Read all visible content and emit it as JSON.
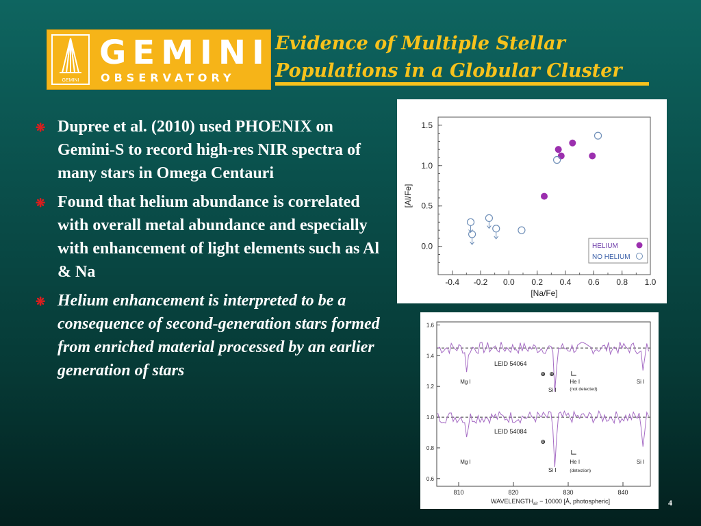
{
  "logo": {
    "main": "GEMINI",
    "sub": "OBSERVATORY",
    "mark": "GEMINI"
  },
  "title": {
    "line1": "Evidence of Multiple Stellar",
    "line2": "Populations in a Globular Cluster"
  },
  "bullets": [
    {
      "text": "Dupree et al. (2010) used PHOENIX on Gemini-S to record high-res NIR spectra of many stars in Omega Centauri",
      "italic": false
    },
    {
      "text": "Found that helium abundance is correlated with overall metal abundance and especially with enhancement of light elements such as Al & Na",
      "italic": true
    },
    {
      "text": "Helium enhancement is interpreted to be a consequence of second-generation stars formed from enriched material processed by an earlier generation of stars",
      "italic": true
    }
  ],
  "page_number": "4",
  "colors": {
    "title": "#f7c21c",
    "logo_bg": "#f6b418",
    "helium": "#9b2fae",
    "no_helium": "#6f8fb8",
    "bullet": "#d81e1e"
  },
  "chart_data": [
    {
      "type": "scatter",
      "xlabel": "[Na/Fe]",
      "ylabel": "[Al/Fe]",
      "xlim": [
        -0.5,
        1.0
      ],
      "ylim": [
        -0.35,
        1.6
      ],
      "xticks": [
        "-0.4",
        "-0.2",
        "0.0",
        "0.2",
        "0.4",
        "0.6",
        "0.8",
        "1.0"
      ],
      "yticks": [
        "0.0",
        "0.5",
        "1.0",
        "1.5"
      ],
      "legend_position": "bottom-right",
      "series": [
        {
          "name": "HELIUM",
          "marker": "filled",
          "points": [
            [
              0.25,
              0.62
            ],
            [
              0.35,
              1.2
            ],
            [
              0.37,
              1.12
            ],
            [
              0.45,
              1.28
            ],
            [
              0.59,
              1.12
            ]
          ]
        },
        {
          "name": "NO HELIUM",
          "marker": "open",
          "points": [
            [
              -0.27,
              0.3,
              true
            ],
            [
              -0.26,
              0.15,
              true
            ],
            [
              -0.14,
              0.35,
              true
            ],
            [
              -0.09,
              0.22,
              true
            ],
            [
              0.09,
              0.2,
              false
            ],
            [
              0.34,
              1.07,
              false
            ],
            [
              0.63,
              1.37,
              false
            ]
          ]
        }
      ]
    },
    {
      "type": "line",
      "xlabel": "WAVELENGTH",
      "xlabel_sub": "air",
      "xlabel_rest": " − 10000 [Å, photospheric]",
      "xlim": [
        806,
        845
      ],
      "ylim": [
        0.55,
        1.62
      ],
      "xticks": [
        "810",
        "820",
        "830",
        "840"
      ],
      "yticks": [
        "0.6",
        "0.8",
        "1.0",
        "1.2",
        "1.4",
        "1.6"
      ],
      "panels": [
        {
          "label": "LEID 54064",
          "baseline": 1.45,
          "he_label": "He I",
          "he_note": "(not detected)",
          "lines": [
            {
              "label": "Mg I",
              "x": 811.5,
              "depth": 0.15
            },
            {
              "label": "Si I",
              "x": 827.6,
              "depth": 0.3
            },
            {
              "label": "Si I",
              "x": 843.7,
              "depth": 0.18
            }
          ]
        },
        {
          "label": "LEID 54084",
          "baseline": 1.0,
          "he_label": "He I",
          "he_note": "(detection)",
          "lines": [
            {
              "label": "Mg I",
              "x": 811.5,
              "depth": 0.12
            },
            {
              "label": "Si I",
              "x": 827.6,
              "depth": 0.36
            },
            {
              "label": "Si I",
              "x": 843.7,
              "depth": 0.2
            }
          ]
        }
      ]
    }
  ]
}
